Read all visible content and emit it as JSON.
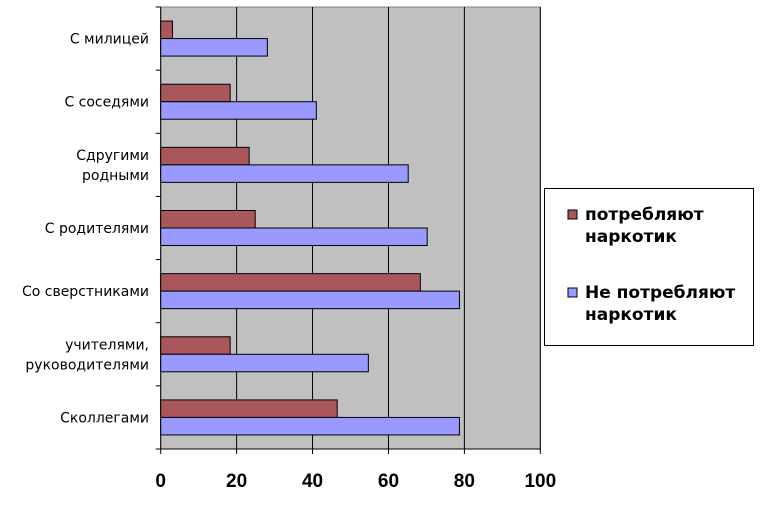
{
  "chart_data": {
    "type": "bar",
    "orientation": "horizontal",
    "title": "",
    "xlabel": "",
    "ylabel": "",
    "xlim": [
      0,
      100
    ],
    "xticks": [
      0,
      20,
      40,
      60,
      80,
      100
    ],
    "grid": true,
    "legend_position": "right",
    "categories": [
      [
        "С милицей"
      ],
      [
        "С соседями"
      ],
      [
        "Сдругими",
        "родными"
      ],
      [
        "С родителями"
      ],
      [
        "Со сверстниками"
      ],
      [
        "учителями,",
        "руководителями"
      ],
      [
        "Сколлегами"
      ]
    ],
    "series": [
      {
        "name": [
          "потребляют",
          "наркотик"
        ],
        "color": "#A9575A",
        "values": [
          3.1,
          18.3,
          23.3,
          24.9,
          68.4,
          18.3,
          46.5
        ]
      },
      {
        "name": [
          "Не потребляют",
          "наркотик"
        ],
        "color": "#9999FF",
        "values": [
          28.1,
          41.0,
          65.2,
          70.2,
          78.7,
          54.7,
          78.7
        ]
      }
    ],
    "plot_background": "#C0C0C0"
  }
}
